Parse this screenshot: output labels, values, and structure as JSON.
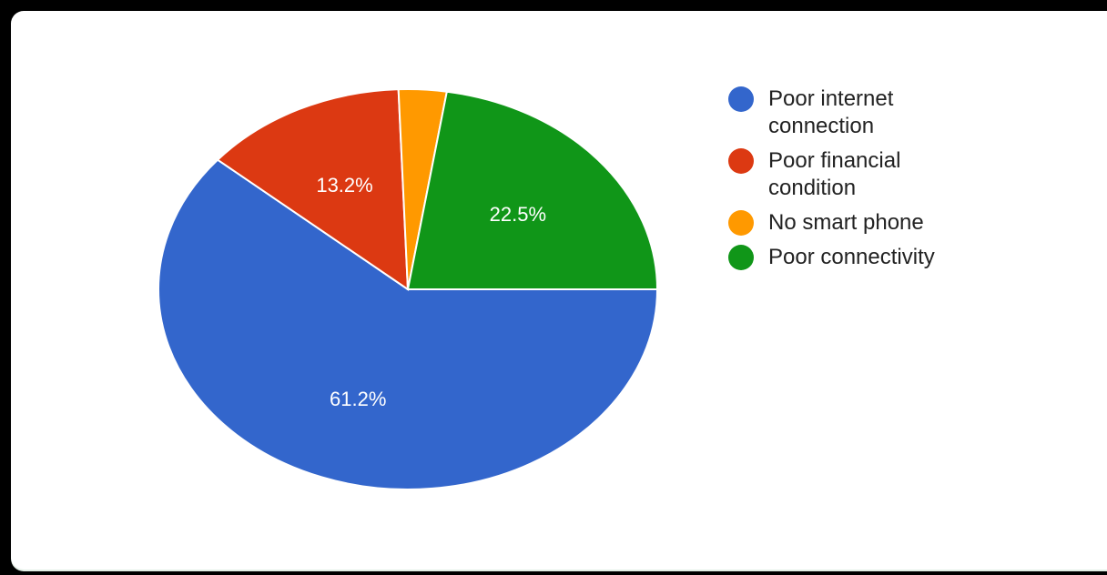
{
  "chart_data": {
    "type": "pie",
    "title": "",
    "categories": [
      "Poor internet connection",
      "Poor financial condition",
      "No smart phone",
      "Poor connectivity"
    ],
    "values": [
      61.2,
      13.2,
      3.1,
      22.5
    ],
    "data_labels": [
      "61.2%",
      "13.2%",
      "",
      "22.5%"
    ],
    "colors": [
      "#3366CC",
      "#DC3912",
      "#FF9900",
      "#109618"
    ],
    "legend_position": "right"
  },
  "legend": {
    "items": [
      {
        "label": "Poor internet connection",
        "color": "#3366CC"
      },
      {
        "label": "Poor financial condition",
        "color": "#DC3912"
      },
      {
        "label": "No smart phone",
        "color": "#FF9900"
      },
      {
        "label": "Poor connectivity",
        "color": "#109618"
      }
    ]
  }
}
